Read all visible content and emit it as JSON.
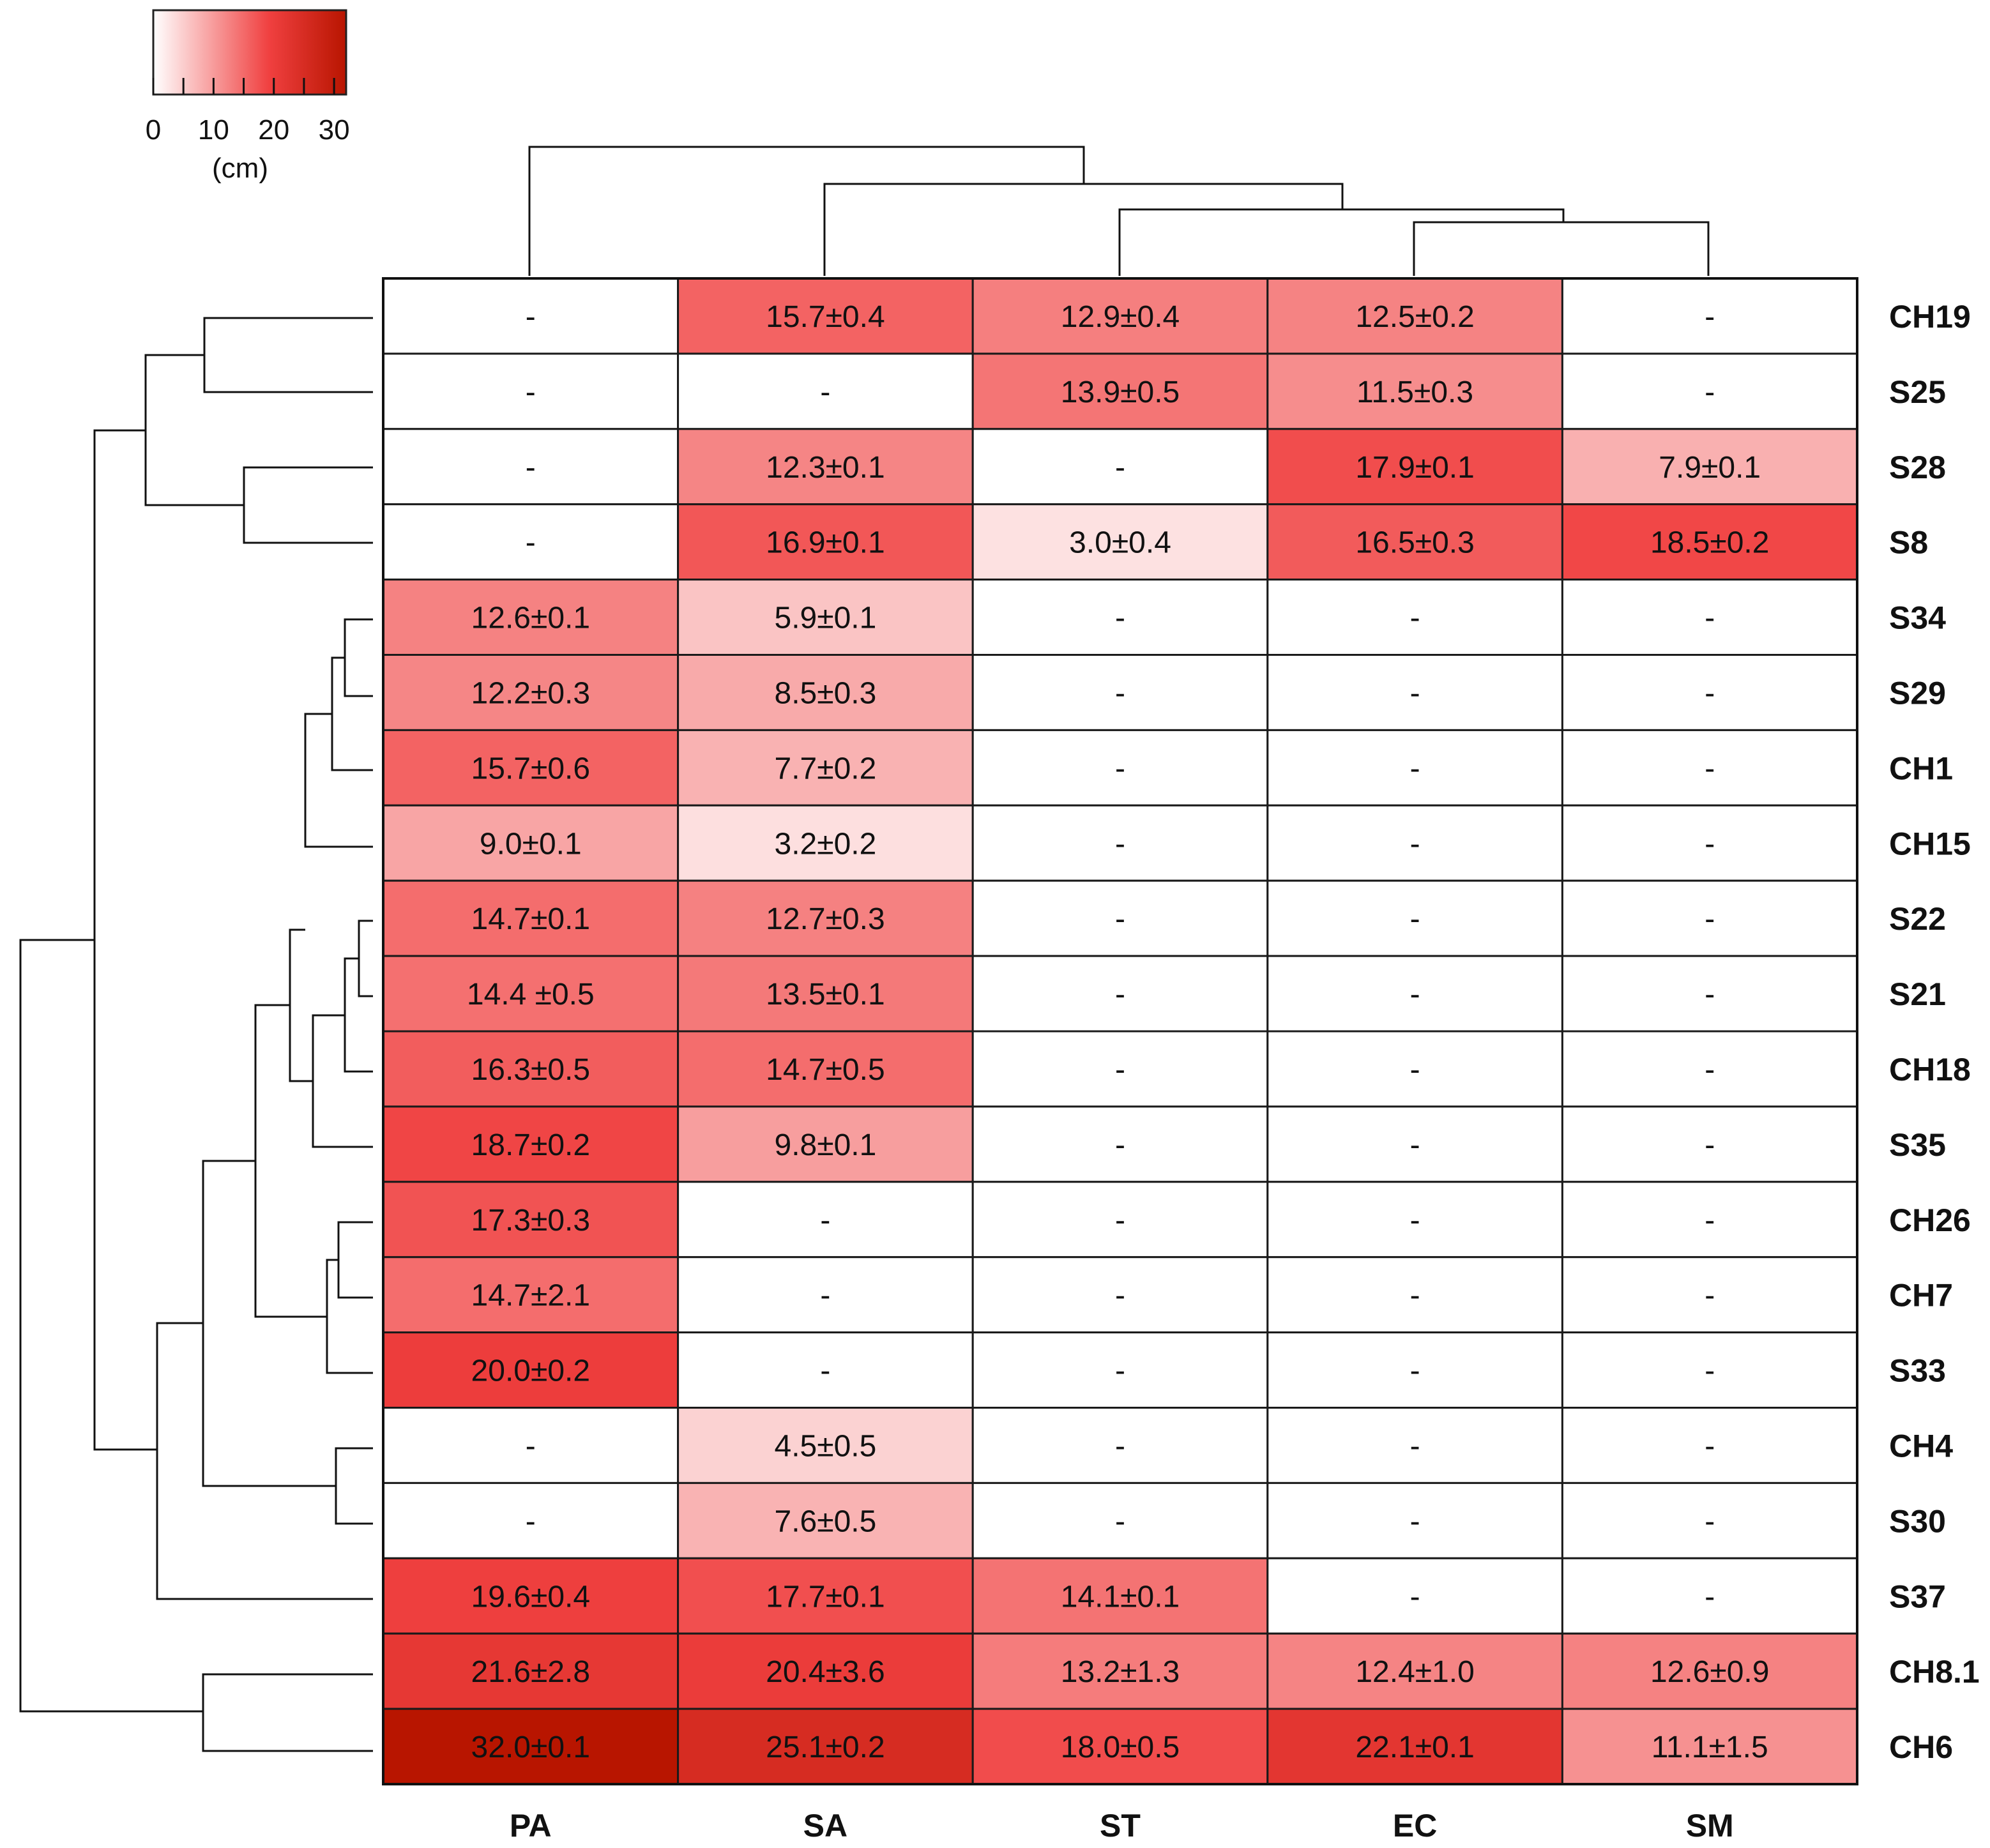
{
  "chart_data": {
    "type": "heatmap",
    "title": "",
    "columns": [
      "PA",
      "SA",
      "ST",
      "EC",
      "SM"
    ],
    "rows": [
      "CH19",
      "S25",
      "S28",
      "S8",
      "S34",
      "S29",
      "CH1",
      "CH15",
      "S22",
      "S21",
      "CH18",
      "S35",
      "CH26",
      "CH7",
      "S33",
      "CH4",
      "S30",
      "S37",
      "CH8.1",
      "CH6"
    ],
    "values": [
      [
        null,
        15.7,
        12.9,
        12.5,
        null
      ],
      [
        null,
        null,
        13.9,
        11.5,
        null
      ],
      [
        null,
        12.3,
        null,
        17.9,
        7.9
      ],
      [
        null,
        16.9,
        3.0,
        16.5,
        18.5
      ],
      [
        12.6,
        5.9,
        null,
        null,
        null
      ],
      [
        12.2,
        8.5,
        null,
        null,
        null
      ],
      [
        15.7,
        7.7,
        null,
        null,
        null
      ],
      [
        9.0,
        3.2,
        null,
        null,
        null
      ],
      [
        14.7,
        12.7,
        null,
        null,
        null
      ],
      [
        14.4,
        13.5,
        null,
        null,
        null
      ],
      [
        16.3,
        14.7,
        null,
        null,
        null
      ],
      [
        18.7,
        9.8,
        null,
        null,
        null
      ],
      [
        17.3,
        null,
        null,
        null,
        null
      ],
      [
        14.7,
        null,
        null,
        null,
        null
      ],
      [
        20.0,
        null,
        null,
        null,
        null
      ],
      [
        null,
        4.5,
        null,
        null,
        null
      ],
      [
        null,
        7.6,
        null,
        null,
        null
      ],
      [
        19.6,
        17.7,
        14.1,
        null,
        null
      ],
      [
        21.6,
        20.4,
        13.2,
        12.4,
        12.6
      ],
      [
        32.0,
        25.1,
        18.0,
        22.1,
        11.1
      ]
    ],
    "labels": [
      [
        "-",
        "15.7±0.4",
        "12.9±0.4",
        "12.5±0.2",
        "-"
      ],
      [
        "-",
        "-",
        "13.9±0.5",
        "11.5±0.3",
        "-"
      ],
      [
        "-",
        "12.3±0.1",
        "-",
        "17.9±0.1",
        "7.9±0.1"
      ],
      [
        "-",
        "16.9±0.1",
        "3.0±0.4",
        "16.5±0.3",
        "18.5±0.2"
      ],
      [
        "12.6±0.1",
        "5.9±0.1",
        "-",
        "-",
        "-"
      ],
      [
        "12.2±0.3",
        "8.5±0.3",
        "-",
        "-",
        "-"
      ],
      [
        "15.7±0.6",
        "7.7±0.2",
        "-",
        "-",
        "-"
      ],
      [
        "9.0±0.1",
        "3.2±0.2",
        "-",
        "-",
        "-"
      ],
      [
        "14.7±0.1",
        "12.7±0.3",
        "-",
        "-",
        "-"
      ],
      [
        "14.4 ±0.5",
        "13.5±0.1",
        "-",
        "-",
        "-"
      ],
      [
        "16.3±0.5",
        "14.7±0.5",
        "-",
        "-",
        "-"
      ],
      [
        "18.7±0.2",
        "9.8±0.1",
        "-",
        "-",
        "-"
      ],
      [
        "17.3±0.3",
        "-",
        "-",
        "-",
        "-"
      ],
      [
        "14.7±2.1",
        "-",
        "-",
        "-",
        "-"
      ],
      [
        "20.0±0.2",
        "-",
        "-",
        "-",
        "-"
      ],
      [
        "-",
        "4.5±0.5",
        "-",
        "-",
        "-"
      ],
      [
        "-",
        "7.6±0.5",
        "-",
        "-",
        "-"
      ],
      [
        "19.6±0.4",
        "17.7±0.1",
        "14.1±0.1",
        "-",
        "-"
      ],
      [
        "21.6±2.8",
        "20.4±3.6",
        "13.2±1.3",
        "12.4±1.0",
        "12.6±0.9"
      ],
      [
        "32.0±0.1",
        "25.1±0.2",
        "18.0±0.5",
        "22.1±0.1",
        "11.1±1.5"
      ]
    ],
    "color_scale": {
      "min": 0,
      "max": 32,
      "low_color": "#ffffff",
      "mid_color": "#f04040",
      "high_color": "#b81500",
      "ticks": [
        0,
        10,
        20,
        30
      ],
      "unit_label": "(cm)"
    },
    "column_dendrogram": true,
    "row_dendrogram": true
  }
}
